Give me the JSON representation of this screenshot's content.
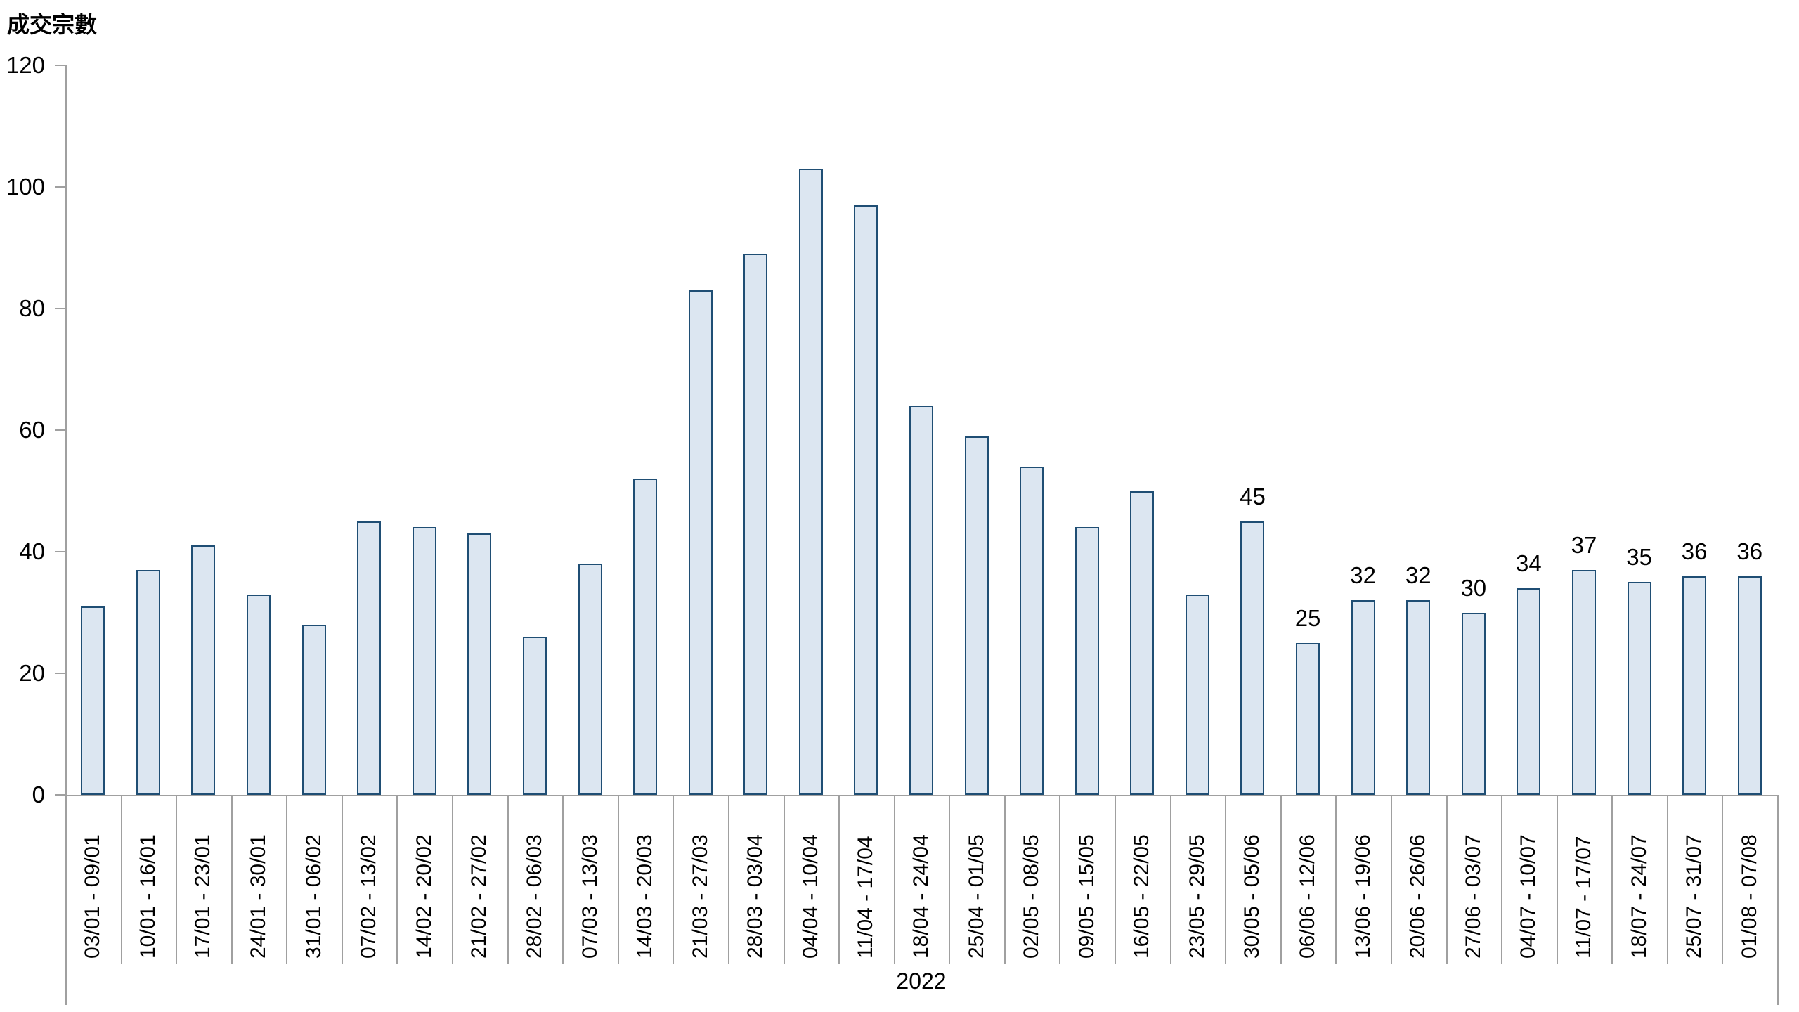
{
  "chart_data": {
    "type": "bar",
    "ylabel": "成交宗數",
    "xlabel": "2022",
    "ylim": [
      0,
      120
    ],
    "yticks": [
      0,
      20,
      40,
      60,
      80,
      100,
      120
    ],
    "grid": "off",
    "legend": "none",
    "categories": [
      "03/01 - 09/01",
      "10/01 - 16/01",
      "17/01 - 23/01",
      "24/01 - 30/01",
      "31/01 - 06/02",
      "07/02 - 13/02",
      "14/02 - 20/02",
      "21/02 - 27/02",
      "28/02 - 06/03",
      "07/03 - 13/03",
      "14/03 - 20/03",
      "21/03 - 27/03",
      "28/03 - 03/04",
      "04/04 - 10/04",
      "11/04 - 17/04",
      "18/04 - 24/04",
      "25/04 - 01/05",
      "02/05 - 08/05",
      "09/05 - 15/05",
      "16/05 - 22/05",
      "23/05 - 29/05",
      "30/05 - 05/06",
      "06/06 - 12/06",
      "13/06 - 19/06",
      "20/06 - 26/06",
      "27/06 - 03/07",
      "04/07 - 10/07",
      "11/07 - 17/07",
      "18/07 - 24/07",
      "25/07 - 31/07",
      "01/08 - 07/08"
    ],
    "values": [
      31,
      37,
      41,
      33,
      28,
      45,
      44,
      43,
      26,
      38,
      52,
      83,
      89,
      103,
      97,
      64,
      59,
      54,
      44,
      50,
      33,
      45,
      25,
      32,
      32,
      30,
      34,
      37,
      35,
      36,
      36
    ],
    "data_labels": [
      null,
      null,
      null,
      null,
      null,
      null,
      null,
      null,
      null,
      null,
      null,
      null,
      null,
      null,
      null,
      null,
      null,
      null,
      null,
      null,
      null,
      "45",
      "25",
      "32",
      "32",
      "30",
      "34",
      "37",
      "35",
      "36",
      "36"
    ]
  },
  "colors": {
    "bar_fill": "#dce6f1",
    "bar_border": "#1f4e74",
    "axis_line": "#a0a0a0",
    "text": "#000000"
  }
}
